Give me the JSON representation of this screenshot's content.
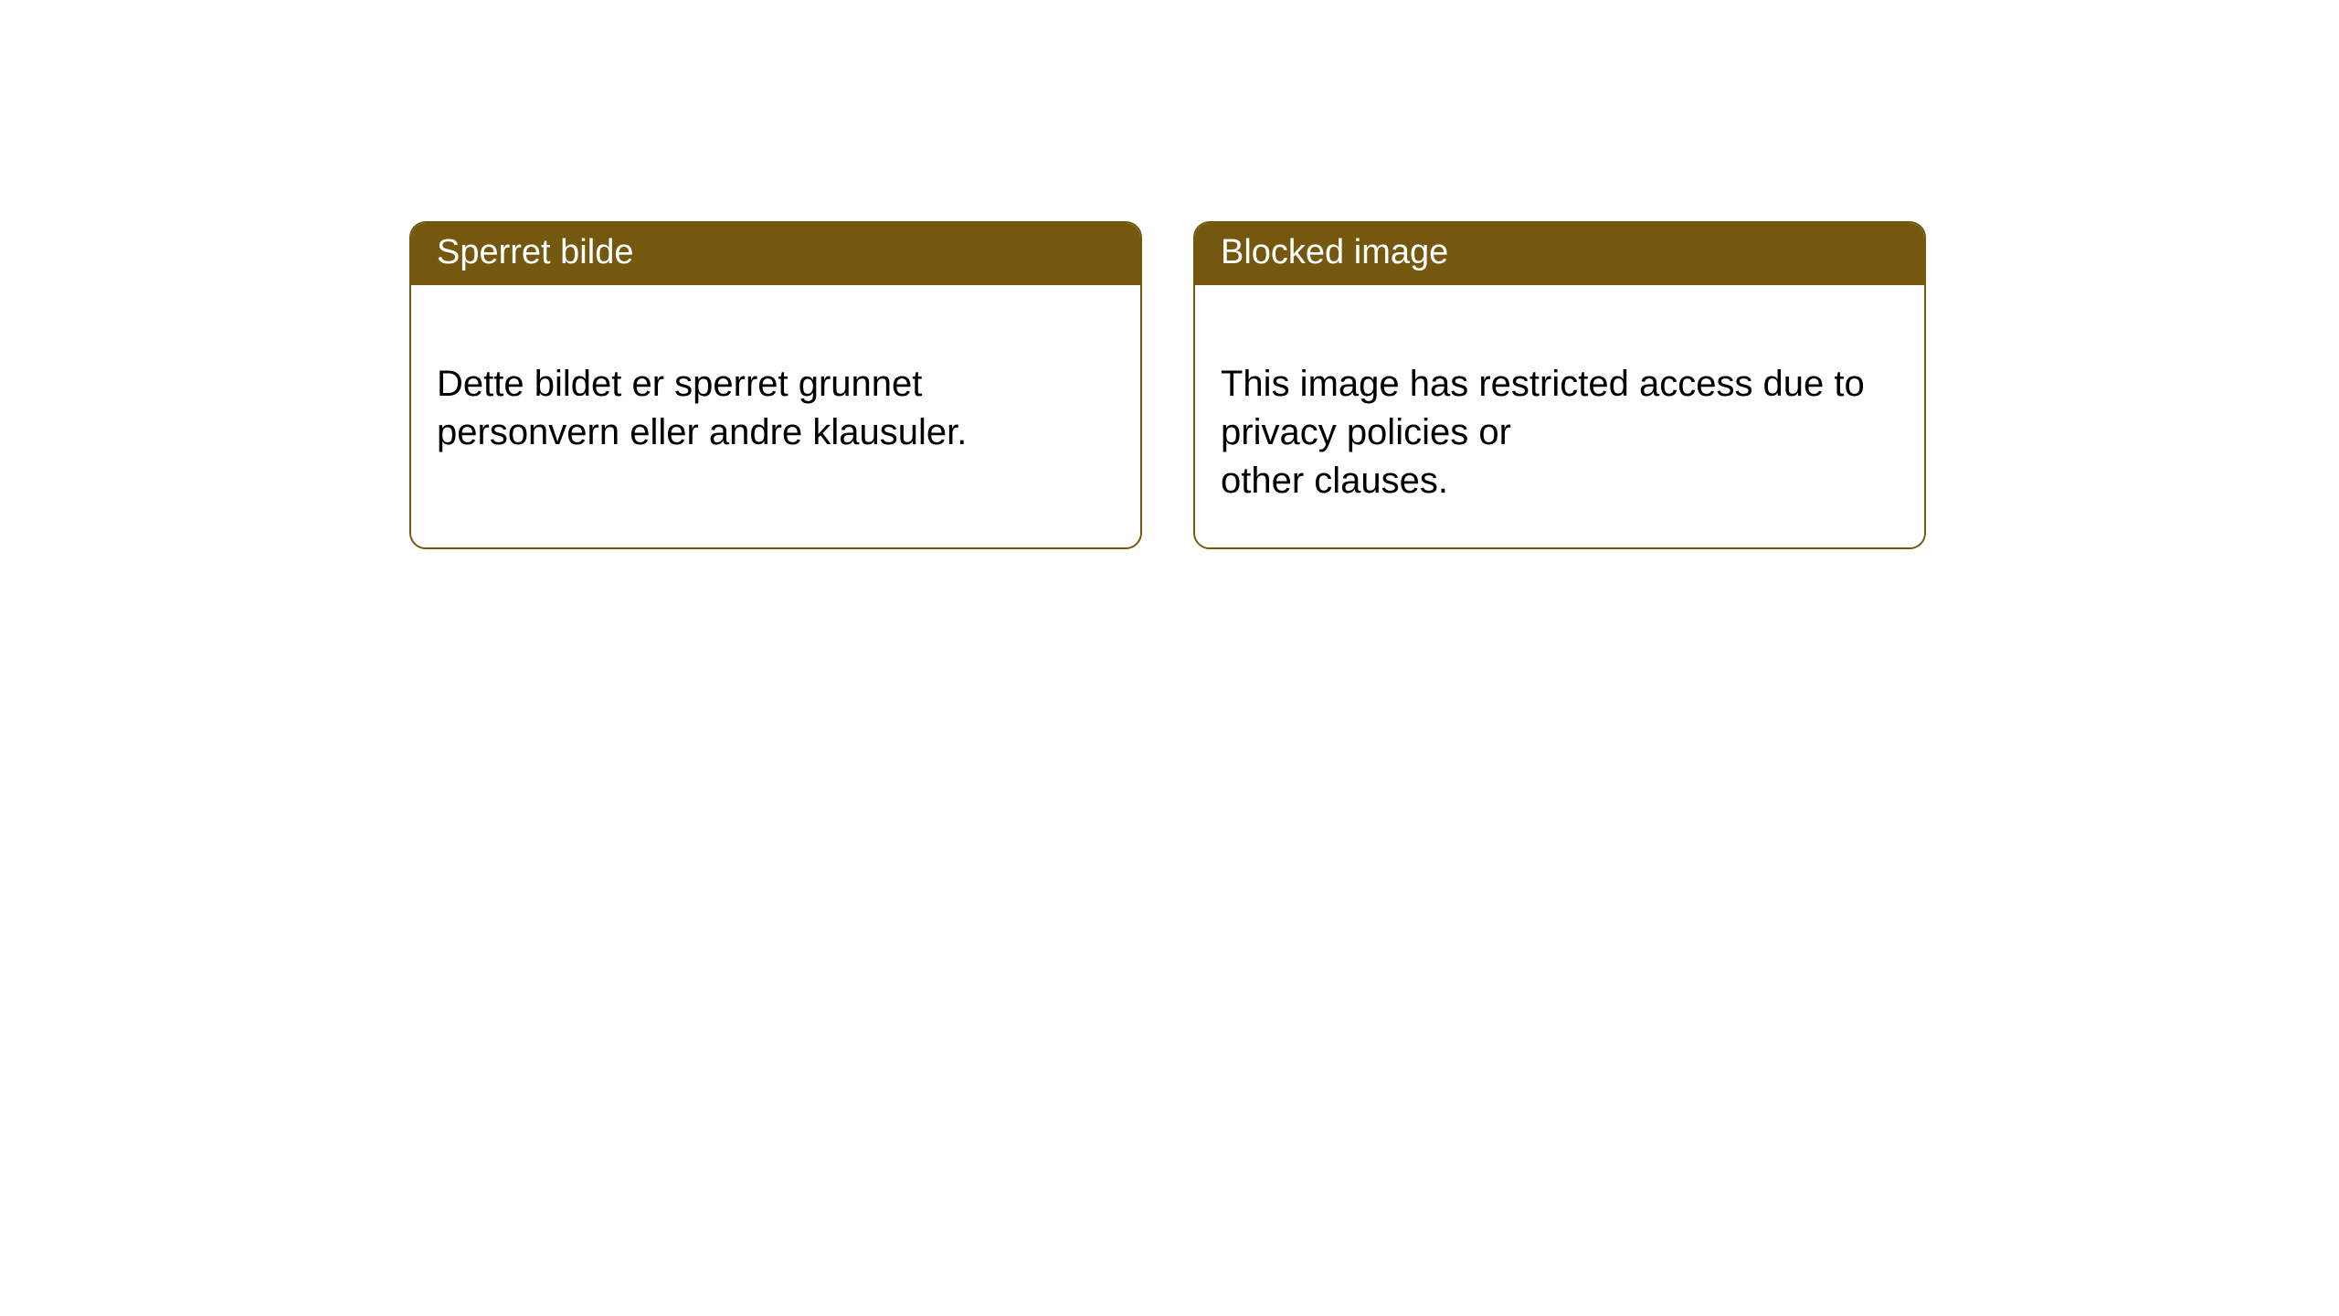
{
  "colors": {
    "header_bg": "#745810",
    "header_text": "#ffffff",
    "border": "#745810",
    "body_bg": "#ffffff",
    "body_text": "#000000"
  },
  "cards": [
    {
      "title": "Sperret bilde",
      "body": "Dette bildet er sperret grunnet personvern eller andre klausuler."
    },
    {
      "title": "Blocked image",
      "body": "This image has restricted access due to privacy policies or\nother clauses."
    }
  ]
}
